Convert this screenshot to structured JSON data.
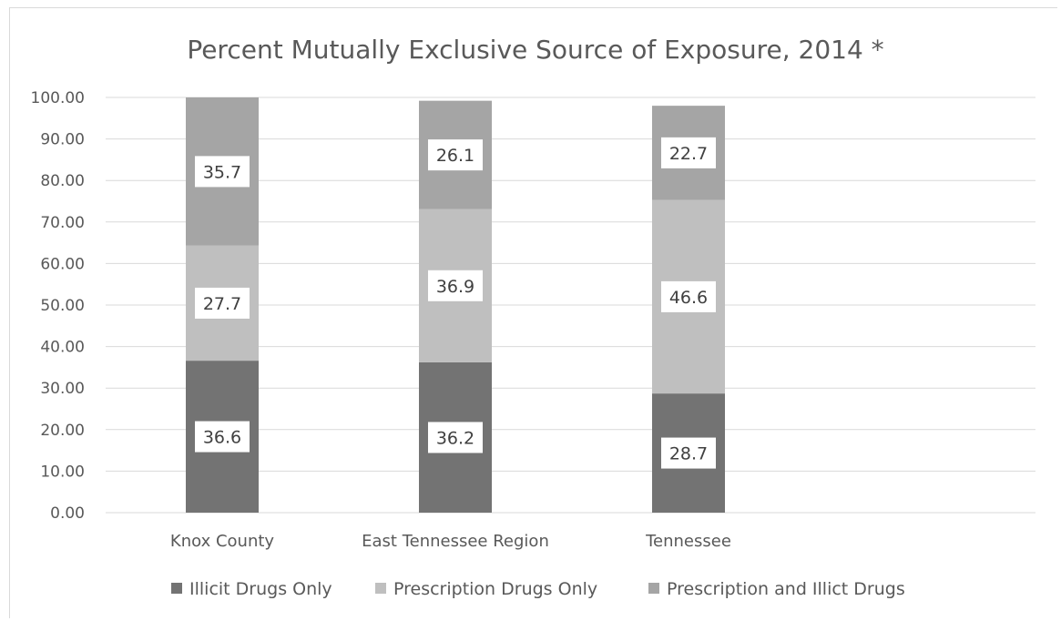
{
  "chart_data": {
    "type": "bar",
    "stacked": true,
    "title": "Percent Mutually Exclusive Source of Exposure, 2014 *",
    "xlabel": "",
    "ylabel": "",
    "categories": [
      "Knox County",
      "East Tennessee Region",
      "Tennessee"
    ],
    "series": [
      {
        "name": "Illicit Drugs Only",
        "values": [
          36.6,
          36.2,
          28.7
        ],
        "labels": [
          "36.6",
          "36.2",
          "28.7"
        ],
        "color": "#737373"
      },
      {
        "name": "Prescription Drugs Only",
        "values": [
          27.7,
          36.9,
          46.6
        ],
        "labels": [
          "27.7",
          "36.9",
          "46.6"
        ],
        "color": "#bfbfbf"
      },
      {
        "name": "Prescription and Illict Drugs",
        "values": [
          35.7,
          26.1,
          22.7
        ],
        "labels": [
          "35.7",
          "26.1",
          "22.7"
        ],
        "color": "#a5a5a5"
      }
    ],
    "ylim": [
      0,
      100
    ],
    "yticks": [
      "0.00",
      "10.00",
      "20.00",
      "30.00",
      "40.00",
      "50.00",
      "60.00",
      "70.00",
      "80.00",
      "90.00",
      "100.00"
    ],
    "grid": true,
    "legend_position": "bottom"
  }
}
